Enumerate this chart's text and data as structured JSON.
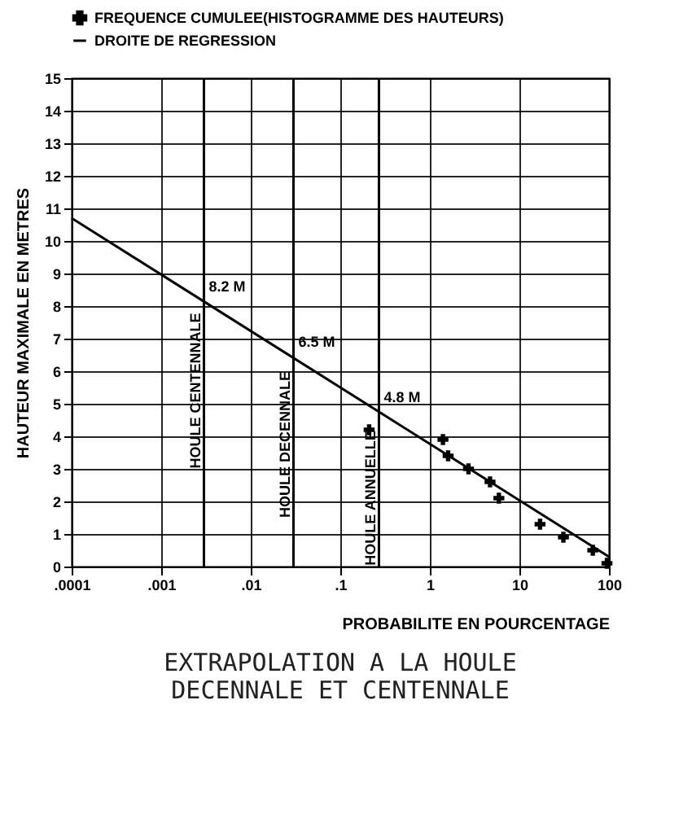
{
  "chart_data": {
    "type": "scatter",
    "title": "EXTRAPOLATION A LA HOULE DECENNALE ET CENTENNALE",
    "xlabel": "PROBABILITE EN POURCENTAGE",
    "ylabel": "HAUTEUR MAXIMALE EN METRES",
    "xlim": [
      0.0001,
      100
    ],
    "ylim": [
      0,
      15
    ],
    "log": "x",
    "grid": true,
    "legend": "top",
    "line_style": "solid",
    "xticks": [
      {
        "value": 0.0001,
        "label": ".0001"
      },
      {
        "value": 0.001,
        "label": ".001"
      },
      {
        "value": 0.01,
        "label": ".01"
      },
      {
        "value": 0.1,
        "label": ".1"
      },
      {
        "value": 1,
        "label": "1"
      },
      {
        "value": 10,
        "label": "10"
      },
      {
        "value": 100,
        "label": "100"
      }
    ],
    "yticks": [
      0,
      1,
      2,
      3,
      4,
      5,
      6,
      7,
      8,
      9,
      10,
      11,
      12,
      13,
      14,
      15
    ],
    "series": [
      {
        "name": "FREQUENCE CUMULEE(HISTOGRAMME DES HAUTEURS)",
        "marker": "cross",
        "color": "#000000",
        "x": [
          0.21,
          1.4,
          1.6,
          2.7,
          4.7,
          5.9,
          17,
          31,
          66,
          95
        ],
        "values": [
          4.2,
          3.9,
          3.4,
          3.0,
          2.6,
          2.1,
          1.3,
          0.9,
          0.5,
          0.1
        ]
      },
      {
        "name": "DROITE DE REGRESSION",
        "type": "line",
        "marker": "none",
        "color": "#000000",
        "x": [
          0.0001,
          100
        ],
        "values": [
          10.7,
          0.3
        ]
      }
    ],
    "ref_lines": [
      {
        "axis": "x",
        "value": 0.003,
        "label": "HOULE CENTENNALE"
      },
      {
        "axis": "x",
        "value": 0.03,
        "label": "HOULE DECENNALE"
      },
      {
        "axis": "x",
        "value": 0.27,
        "label": "HOULE ANNUELLE"
      }
    ],
    "annotations": [
      {
        "text": "8.2 M",
        "x": 0.003,
        "y": 8.2
      },
      {
        "text": "6.5 M",
        "x": 0.03,
        "y": 6.5
      },
      {
        "text": "4.8 M",
        "x": 0.27,
        "y": 4.8
      }
    ]
  }
}
